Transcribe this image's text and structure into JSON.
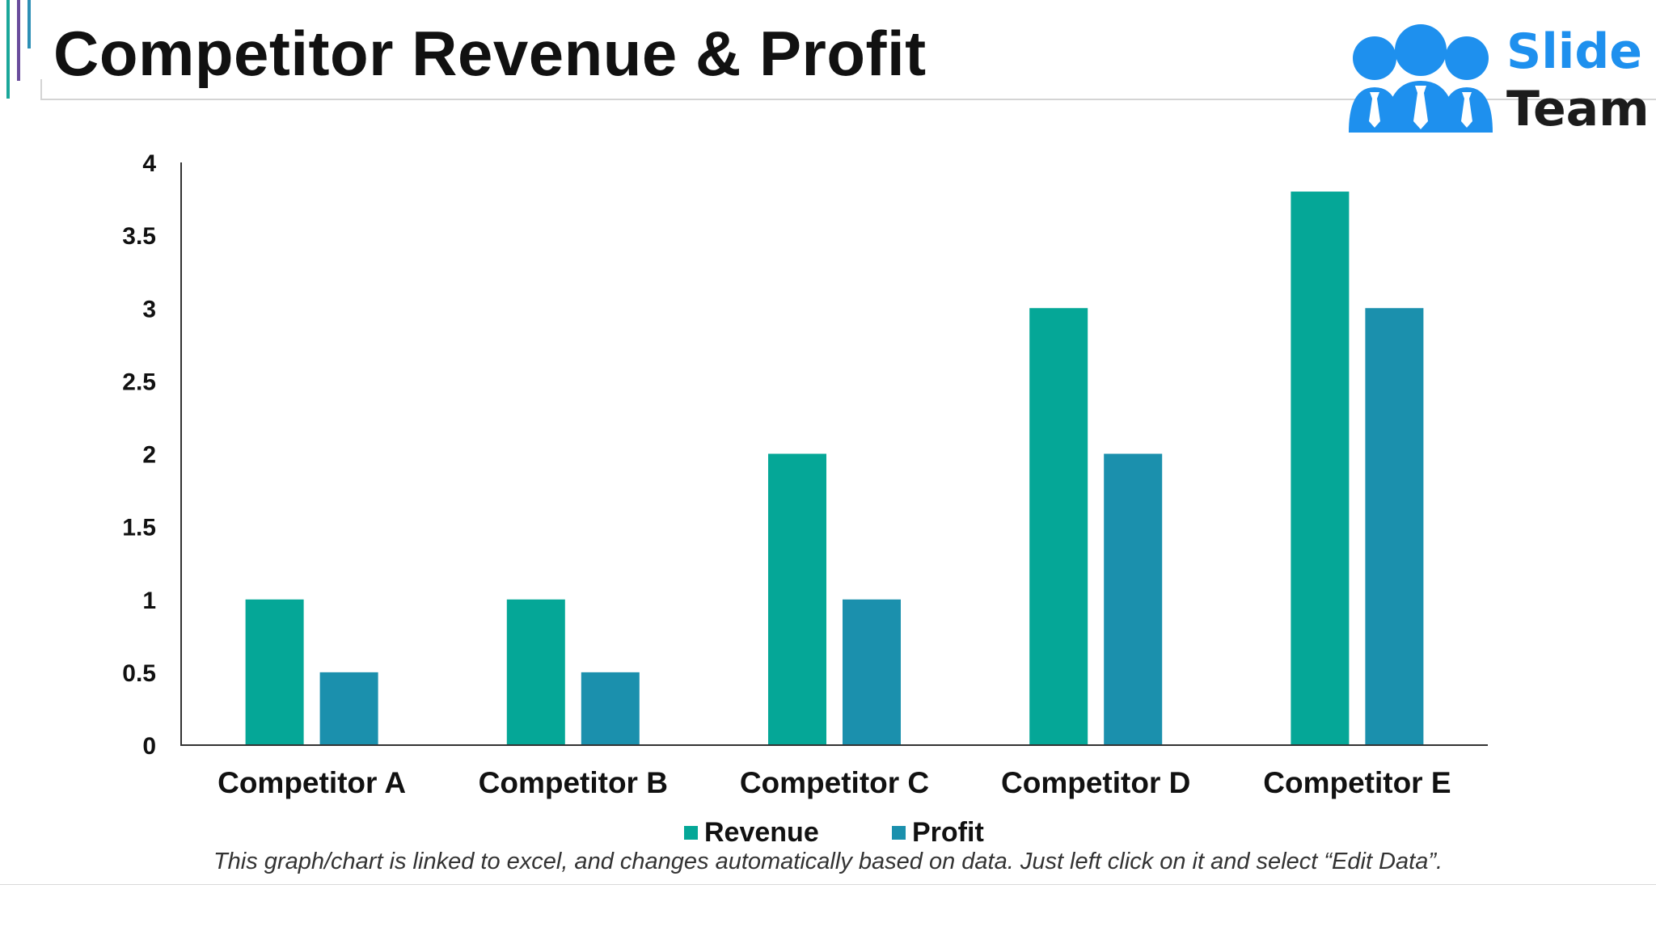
{
  "slide": {
    "title": "Competitor Revenue & Profit",
    "footnote": "This graph/chart is linked to excel, and changes automatically based on data. Just left click on it and select “Edit Data”."
  },
  "logo": {
    "word1": "Slide",
    "word2": "Team"
  },
  "colors": {
    "revenue": "#05a797",
    "profit": "#1b90ad",
    "logo_blue": "#1e90ee",
    "logo_dark": "#1c1c1c"
  },
  "legend": [
    {
      "label": "Revenue",
      "color": "#05a797"
    },
    {
      "label": "Profit",
      "color": "#1b90ad"
    }
  ],
  "chart_data": {
    "type": "bar",
    "categories": [
      "Competitor A",
      "Competitor B",
      "Competitor C",
      "Competitor D",
      "Competitor E"
    ],
    "series": [
      {
        "name": "Revenue",
        "values": [
          1,
          1,
          2,
          3,
          3.8
        ]
      },
      {
        "name": "Profit",
        "values": [
          0.5,
          0.5,
          1,
          2,
          3
        ]
      }
    ],
    "y_ticks": [
      "0",
      "0.5",
      "1",
      "1.5",
      "2",
      "2.5",
      "3",
      "3.5",
      "4"
    ],
    "ylim": [
      0,
      4
    ],
    "grid": false,
    "legend_position": "bottom"
  }
}
